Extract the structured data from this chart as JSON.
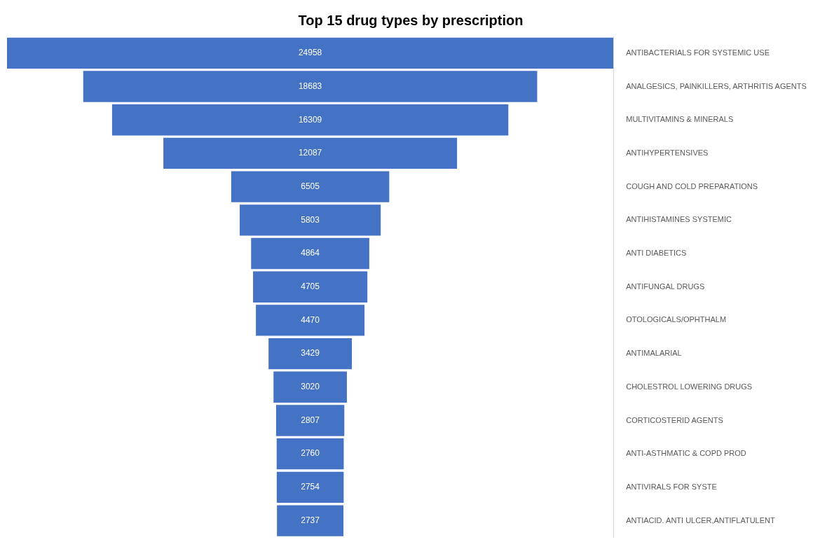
{
  "chart_data": {
    "type": "other",
    "title": "Top 15 drug types by prescription",
    "categories": [
      "ANTIBACTERIALS FOR SYSTEMIC USE",
      "ANALGESICS, PAINKILLERS, ARTHRITIS AGENTS",
      "MULTIVITAMINS & MINERALS",
      "ANTIHYPERTENSIVES",
      "COUGH AND COLD PREPARATIONS",
      "ANTIHISTAMINES SYSTEMIC",
      "ANTI DIABETICS",
      "ANTIFUNGAL DRUGS",
      "OTOLOGICALS/OPHTHALM",
      "ANTIMALARIAL",
      "CHOLESTROL LOWERING DRUGS",
      "CORTICOSTERID AGENTS",
      "ANTI-ASTHMATIC & COPD PROD",
      "ANTIVIRALS FOR SYSTE",
      "ANTIACID. ANTI ULCER,ANTIFLATULENT"
    ],
    "values": [
      24958,
      18683,
      16309,
      12087,
      6505,
      5803,
      4864,
      4705,
      4470,
      3429,
      3020,
      2807,
      2760,
      2754,
      2737
    ],
    "color": "#4472c4",
    "data_labels": true
  }
}
